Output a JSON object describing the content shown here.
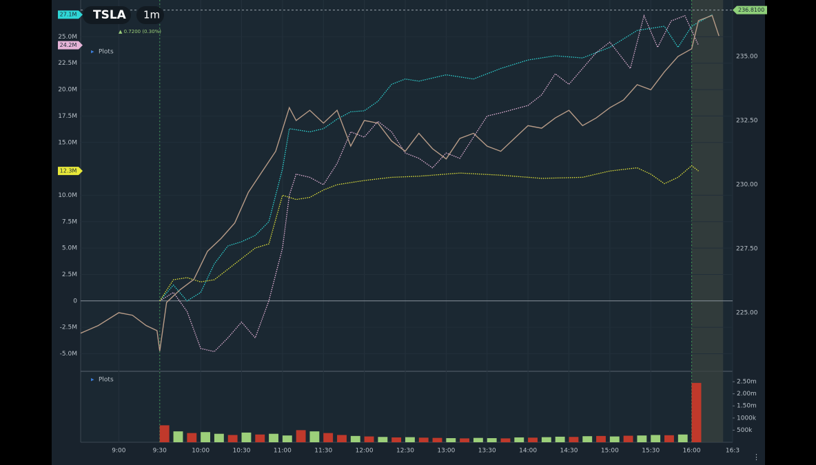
{
  "header": {
    "symbol": "TSLA",
    "interval": "1m",
    "change": "▲ 0.7200 (0.30%)",
    "plots_label": "Plots",
    "volume_plots_label": "Plots"
  },
  "chart_data": {
    "type": "line",
    "xlim": [
      512,
      990
    ],
    "xticks": [
      {
        "value": 540,
        "label": "9:00"
      },
      {
        "value": 570,
        "label": "9:30"
      },
      {
        "value": 600,
        "label": "10:00"
      },
      {
        "value": 630,
        "label": "10:30"
      },
      {
        "value": 660,
        "label": "11:00"
      },
      {
        "value": 690,
        "label": "11:30"
      },
      {
        "value": 720,
        "label": "12:00"
      },
      {
        "value": 750,
        "label": "12:30"
      },
      {
        "value": 780,
        "label": "13:00"
      },
      {
        "value": 810,
        "label": "13:30"
      },
      {
        "value": 840,
        "label": "14:00"
      },
      {
        "value": 870,
        "label": "14:30"
      },
      {
        "value": 900,
        "label": "15:00"
      },
      {
        "value": 930,
        "label": "15:30"
      },
      {
        "value": 960,
        "label": "16:00"
      },
      {
        "value": 990,
        "label": "16:3"
      }
    ],
    "ylim": [
      -6.6,
      27.7
    ],
    "yticks": [
      {
        "value": -5,
        "label": "-5.0M"
      },
      {
        "value": -2.5,
        "label": "-2.5M"
      },
      0,
      {
        "value": 2.5,
        "label": "2.5M"
      },
      {
        "value": 5,
        "label": "5.0M"
      },
      {
        "value": 7.5,
        "label": "7.5M"
      },
      {
        "value": 10,
        "label": "10.0M"
      },
      {
        "value": 15,
        "label": "15.0M"
      },
      {
        "value": 17.5,
        "label": "17.5M"
      },
      {
        "value": 20,
        "label": "20.0M"
      },
      {
        "value": 22.5,
        "label": "22.5M"
      },
      {
        "value": 25,
        "label": "25.0M"
      }
    ],
    "y2lim": [
      222.74,
      236.88
    ],
    "y2ticks": [
      {
        "value": 225,
        "label": "225.00"
      },
      {
        "value": 227.5,
        "label": "227.50"
      },
      {
        "value": 230,
        "label": "230.00"
      },
      {
        "value": 232.5,
        "label": "232.50"
      },
      {
        "value": 235,
        "label": "235.00"
      }
    ],
    "grid": true,
    "series": [
      {
        "color": "#2fd6d6",
        "last_label": "27.1M",
        "x": [
          570,
          580,
          590,
          600,
          610,
          620,
          630,
          640,
          650,
          660,
          665,
          680,
          690,
          700,
          710,
          720,
          730,
          740,
          750,
          760,
          780,
          800,
          820,
          840,
          860,
          880,
          900,
          920,
          940,
          950,
          960,
          975
        ],
        "values": [
          0,
          1.5,
          0,
          0.8,
          3.5,
          5.2,
          5.6,
          6.2,
          7.5,
          12.5,
          16.3,
          16.0,
          16.3,
          17.2,
          17.9,
          18.0,
          18.9,
          20.5,
          21.0,
          20.8,
          21.4,
          21.0,
          22.0,
          22.8,
          23.2,
          23.0,
          24.0,
          25.6,
          26.0,
          24.0,
          26.0,
          27.1
        ]
      },
      {
        "color": "#e6b4d8",
        "last_label": "24.2M",
        "x": [
          570,
          580,
          590,
          600,
          610,
          620,
          630,
          640,
          650,
          660,
          665,
          670,
          680,
          690,
          700,
          710,
          720,
          730,
          740,
          750,
          760,
          770,
          780,
          790,
          800,
          810,
          820,
          840,
          850,
          860,
          870,
          880,
          890,
          900,
          915,
          925,
          935,
          945,
          955,
          965
        ],
        "values": [
          0,
          0.8,
          -1,
          -4.5,
          -4.8,
          -3.5,
          -2.0,
          -3.5,
          0,
          5.0,
          10.0,
          12.0,
          11.7,
          11.0,
          13.0,
          16.0,
          15.5,
          17.0,
          16.0,
          14.0,
          13.5,
          12.6,
          14.0,
          13.5,
          15.5,
          17.5,
          17.8,
          18.5,
          19.5,
          21.5,
          20.5,
          22.0,
          23.5,
          24.5,
          22.0,
          27.0,
          24.0,
          26.5,
          27.0,
          24.2
        ]
      },
      {
        "color": "#e8e83a",
        "last_label": "12.3M",
        "x": [
          570,
          580,
          590,
          600,
          610,
          620,
          630,
          640,
          650,
          660,
          670,
          680,
          690,
          700,
          720,
          740,
          760,
          790,
          820,
          850,
          880,
          900,
          920,
          930,
          940,
          950,
          960,
          965
        ],
        "values": [
          0,
          2.0,
          2.2,
          1.8,
          2.0,
          3.0,
          4.0,
          5.0,
          5.4,
          10.0,
          9.6,
          9.8,
          10.5,
          11.0,
          11.4,
          11.7,
          11.8,
          12.1,
          11.9,
          11.6,
          11.7,
          12.3,
          12.6,
          12.0,
          11.1,
          11.7,
          12.8,
          12.3
        ]
      },
      {
        "color": "#b89c88",
        "axis": "y2",
        "x": [
          512,
          525,
          540,
          550,
          560,
          568,
          570,
          575,
          585,
          595,
          605,
          615,
          625,
          635,
          645,
          655,
          665,
          670,
          680,
          690,
          700,
          710,
          720,
          730,
          740,
          750,
          760,
          770,
          780,
          790,
          800,
          810,
          820,
          830,
          840,
          850,
          860,
          870,
          880,
          890,
          900,
          910,
          920,
          930,
          940,
          950,
          960,
          965,
          975,
          980
        ],
        "values": [
          224.2,
          224.5,
          225.0,
          224.9,
          224.5,
          224.3,
          223.5,
          225.4,
          225.9,
          226.3,
          227.4,
          227.9,
          228.5,
          229.7,
          230.5,
          231.3,
          233.0,
          232.5,
          232.9,
          232.4,
          232.9,
          231.5,
          232.5,
          232.4,
          231.7,
          231.3,
          232.0,
          231.4,
          231.0,
          231.8,
          232.0,
          231.5,
          231.3,
          231.8,
          232.3,
          232.2,
          232.6,
          232.9,
          232.3,
          232.6,
          233.0,
          233.3,
          233.9,
          233.7,
          234.4,
          235.0,
          235.3,
          236.4,
          236.6,
          235.8
        ]
      }
    ],
    "last_price": {
      "value": 236.81,
      "label": "236.8100"
    },
    "volume": {
      "type": "bar",
      "ylim": [
        0,
        2900000
      ],
      "yticks": [
        {
          "value": 500000,
          "label": "500k"
        },
        {
          "value": 1000000,
          "label": "1000k"
        },
        {
          "value": 1500000,
          "label": "1.50m"
        },
        {
          "value": 2000000,
          "label": "2.00m"
        },
        {
          "value": 2500000,
          "label": "2.50m"
        }
      ],
      "x": [
        570,
        580,
        590,
        600,
        610,
        620,
        630,
        640,
        650,
        660,
        670,
        680,
        690,
        700,
        710,
        720,
        730,
        740,
        750,
        760,
        770,
        780,
        790,
        800,
        810,
        820,
        830,
        840,
        850,
        860,
        870,
        880,
        890,
        900,
        910,
        920,
        930,
        940,
        950,
        960
      ],
      "values": [
        700000,
        450000,
        380000,
        420000,
        350000,
        300000,
        400000,
        320000,
        350000,
        280000,
        500000,
        450000,
        380000,
        300000,
        260000,
        240000,
        220000,
        200000,
        210000,
        190000,
        180000,
        170000,
        160000,
        180000,
        170000,
        160000,
        200000,
        190000,
        210000,
        230000,
        220000,
        250000,
        260000,
        240000,
        270000,
        280000,
        300000,
        290000,
        320000,
        2450000
      ],
      "colors": [
        "#c0392b",
        "#9ccf7a",
        "#c0392b",
        "#9ccf7a",
        "#9ccf7a",
        "#c0392b",
        "#9ccf7a",
        "#c0392b",
        "#9ccf7a",
        "#9ccf7a",
        "#c0392b",
        "#9ccf7a",
        "#c0392b",
        "#c0392b",
        "#9ccf7a",
        "#c0392b",
        "#9ccf7a",
        "#c0392b",
        "#9ccf7a",
        "#c0392b",
        "#c0392b",
        "#9ccf7a",
        "#c0392b",
        "#9ccf7a",
        "#9ccf7a",
        "#c0392b",
        "#9ccf7a",
        "#c0392b",
        "#9ccf7a",
        "#9ccf7a",
        "#c0392b",
        "#9ccf7a",
        "#c0392b",
        "#9ccf7a",
        "#c0392b",
        "#9ccf7a",
        "#9ccf7a",
        "#c0392b",
        "#9ccf7a",
        "#c0392b"
      ]
    }
  }
}
